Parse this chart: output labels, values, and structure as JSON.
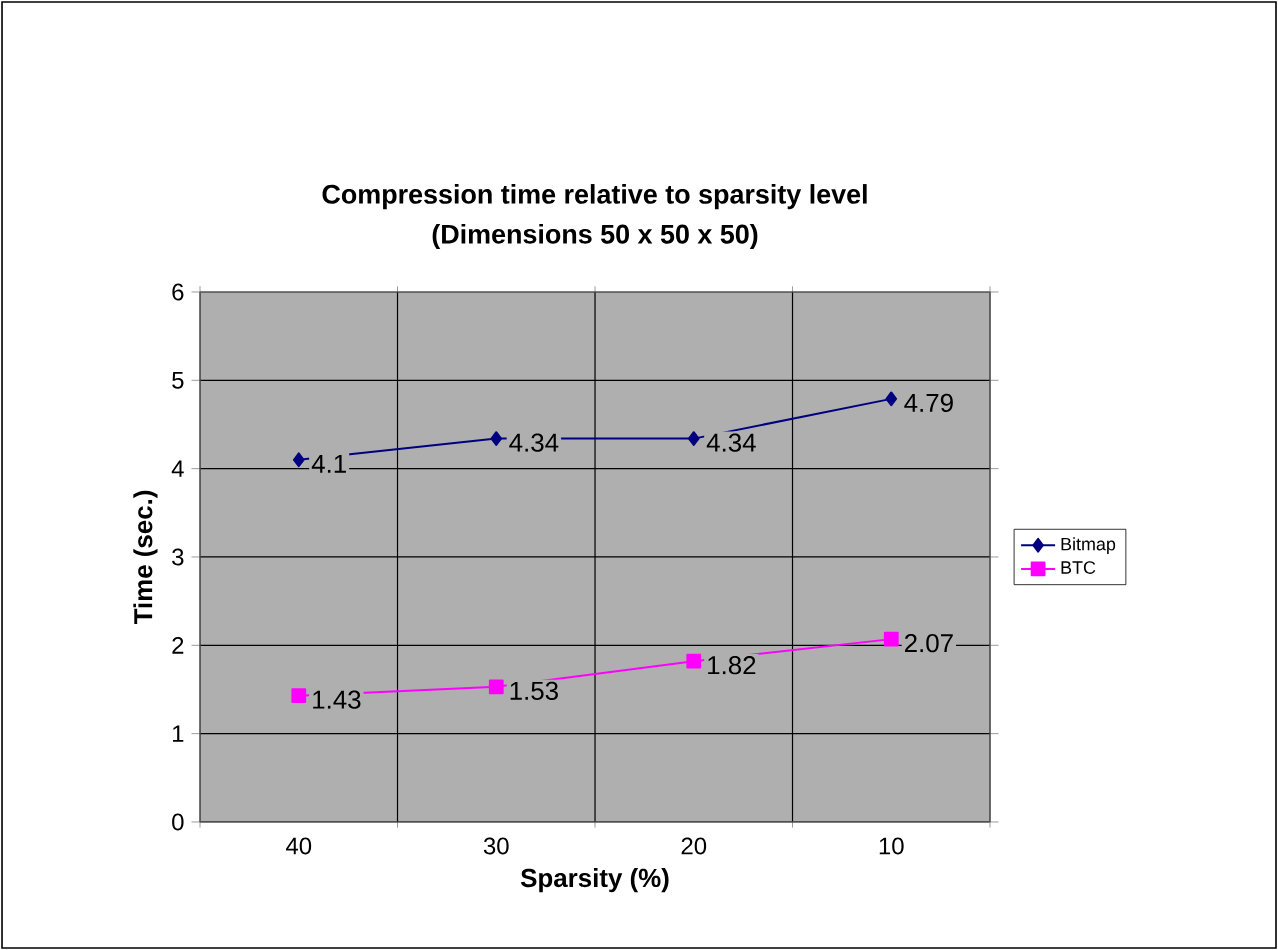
{
  "chart_data": {
    "type": "line",
    "title": "Compression time relative to sparsity level",
    "subtitle": "(Dimensions 50 x 50 x 50)",
    "xlabel": "Sparsity (%)",
    "ylabel": "Time (sec.)",
    "categories": [
      "40",
      "30",
      "20",
      "10"
    ],
    "ylim": [
      0,
      6
    ],
    "yticks": [
      0,
      1,
      2,
      3,
      4,
      5,
      6
    ],
    "grid": true,
    "legend": "right",
    "data_labels": true,
    "series": [
      {
        "name": "Bitmap",
        "color": "#000080",
        "marker": "diamond",
        "values": [
          4.1,
          4.34,
          4.34,
          4.79
        ]
      },
      {
        "name": "BTC",
        "color": "#ff00ff",
        "marker": "square",
        "values": [
          1.43,
          1.53,
          1.82,
          2.07
        ]
      }
    ]
  }
}
